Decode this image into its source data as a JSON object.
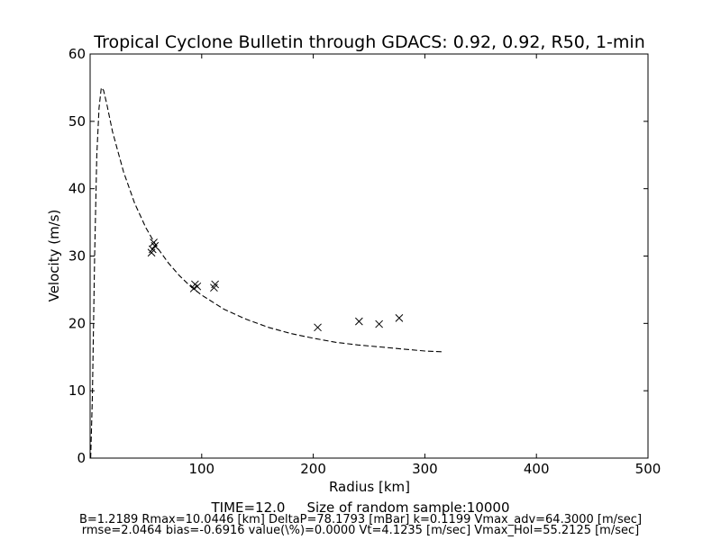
{
  "chart_data": {
    "type": "scatter",
    "title": "Tropical Cyclone Bulletin through GDACS: 0.92, 0.92, R50, 1-min",
    "xlabel": "Radius [km]",
    "ylabel": "Velocity (m/s)",
    "xlim": [
      0,
      500
    ],
    "ylim": [
      0,
      60
    ],
    "xticks": [
      100,
      200,
      300,
      400,
      500
    ],
    "yticks": [
      0,
      10,
      20,
      30,
      40,
      50,
      60
    ],
    "grid": false,
    "observations": {
      "marker": "x",
      "x": [
        55,
        56,
        57,
        58,
        93,
        94,
        96,
        111,
        112,
        204,
        241,
        259,
        277
      ],
      "y": [
        30.5,
        31.0,
        32.0,
        31.5,
        25.2,
        25.8,
        25.5,
        25.3,
        25.8,
        19.4,
        20.3,
        19.9,
        20.8
      ]
    },
    "fitted_profile": {
      "style": "dashed",
      "x": [
        0.5,
        2,
        4,
        6,
        8,
        10,
        12,
        15,
        20,
        25,
        30,
        40,
        50,
        60,
        70,
        80,
        90,
        100,
        120,
        140,
        160,
        180,
        200,
        220,
        240,
        260,
        280,
        300,
        315
      ],
      "y": [
        0,
        9,
        30,
        45,
        52,
        55,
        54.6,
        52.5,
        48.5,
        45.5,
        42.5,
        37.8,
        34.2,
        31.3,
        29.0,
        27.1,
        25.5,
        24.2,
        22.1,
        20.6,
        19.4,
        18.5,
        17.8,
        17.2,
        16.8,
        16.5,
        16.2,
        15.9,
        15.8
      ]
    }
  },
  "footer": {
    "time": "TIME=12.0",
    "sample": "Size of random sample:10000",
    "params_line1": "B=1.2189 Rmax=10.0446 [km]  DeltaP=78.1793 [mBar] k=0.1199 Vmax_adv=64.3000 [m/sec]",
    "params_line2": "rmse=2.0464 bias=-0.6916 value(\\%)=0.0000 Vt=4.1235 [m/sec] Vmax_Hol=55.2125 [m/sec]"
  }
}
